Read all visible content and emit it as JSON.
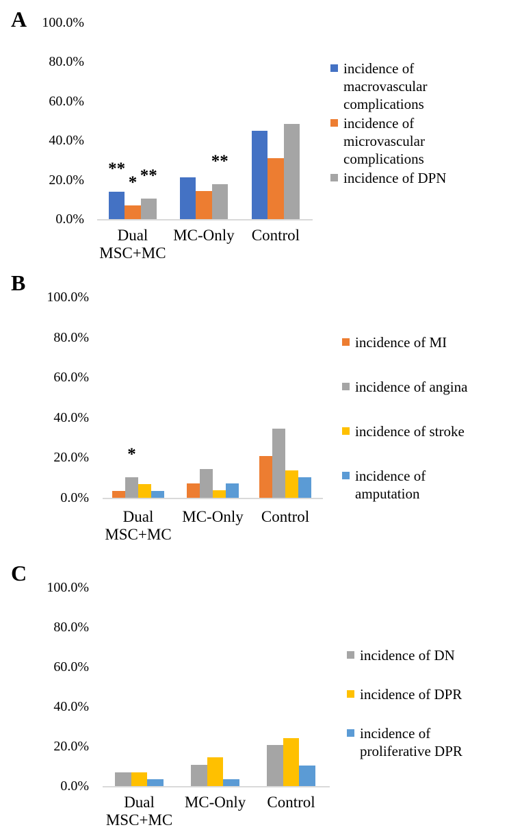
{
  "page": {
    "background": "#ffffff",
    "axis_line_color": "#d9d9d9",
    "text_color": "#000000"
  },
  "colors": {
    "blue": "#4472C4",
    "orange": "#ED7D31",
    "gray": "#A5A5A5",
    "yellow": "#FFC000",
    "light_blue": "#5B9BD5"
  },
  "chart_data": [
    {
      "panel_label": "A",
      "type": "bar",
      "categories": [
        [
          "Dual",
          "MSC+MC"
        ],
        [
          "MC-Only"
        ],
        [
          "Control"
        ]
      ],
      "series": [
        {
          "name": "incidence of macrovascular complications",
          "legend_lines": [
            "incidence of",
            "macrovascular",
            "complications"
          ],
          "color": "#4472C4",
          "values": [
            13.8,
            21.4,
            44.8
          ]
        },
        {
          "name": "incidence of microvascular complications",
          "legend_lines": [
            "incidence of",
            "microvascular",
            "complications"
          ],
          "color": "#ED7D31",
          "values": [
            6.9,
            14.3,
            31.0
          ]
        },
        {
          "name": "incidence of DPN",
          "legend_lines": [
            "incidence of DPN"
          ],
          "color": "#A5A5A5",
          "values": [
            10.3,
            17.9,
            48.3
          ]
        }
      ],
      "ylim": [
        0,
        100
      ],
      "ytick_step": 20,
      "yticks": [
        "0.0%",
        "20.0%",
        "40.0%",
        "60.0%",
        "80.0%",
        "100.0%"
      ],
      "legend_position": "right",
      "grid": false,
      "annotations": [
        {
          "category_index": 0,
          "series_index": 0,
          "text": "**"
        },
        {
          "category_index": 0,
          "series_index": 1,
          "text": "*"
        },
        {
          "category_index": 0,
          "series_index": 2,
          "text": "**"
        },
        {
          "category_index": 1,
          "series_index": 2,
          "text": "**"
        }
      ]
    },
    {
      "panel_label": "B",
      "type": "bar",
      "categories": [
        [
          "Dual",
          "MSC+MC"
        ],
        [
          "MC-Only"
        ],
        [
          "Control"
        ]
      ],
      "series": [
        {
          "name": "incidence of MI",
          "legend_lines": [
            "incidence of MI"
          ],
          "color": "#ED7D31",
          "values": [
            3.4,
            7.1,
            20.7
          ]
        },
        {
          "name": "incidence of angina",
          "legend_lines": [
            "incidence of angina"
          ],
          "color": "#A5A5A5",
          "values": [
            10.3,
            14.3,
            34.5
          ]
        },
        {
          "name": "incidence of stroke",
          "legend_lines": [
            "incidence of stroke"
          ],
          "color": "#FFC000",
          "values": [
            6.9,
            3.6,
            13.8
          ]
        },
        {
          "name": "incidence of amputation",
          "legend_lines": [
            "incidence of",
            "amputation"
          ],
          "color": "#5B9BD5",
          "values": [
            3.4,
            7.1,
            10.3
          ]
        }
      ],
      "ylim": [
        0,
        100
      ],
      "ytick_step": 20,
      "yticks": [
        "0.0%",
        "20.0%",
        "40.0%",
        "60.0%",
        "80.0%",
        "100.0%"
      ],
      "legend_position": "right",
      "grid": false,
      "annotations": [
        {
          "category_index": 0,
          "series_index": 1,
          "text": "*"
        }
      ]
    },
    {
      "panel_label": "C",
      "type": "bar",
      "categories": [
        [
          "Dual",
          "MSC+MC"
        ],
        [
          "MC-Only"
        ],
        [
          "Control"
        ]
      ],
      "series": [
        {
          "name": "incidence of DN",
          "legend_lines": [
            "incidence of DN"
          ],
          "color": "#A5A5A5",
          "values": [
            6.9,
            10.7,
            20.7
          ]
        },
        {
          "name": "incidence of DPR",
          "legend_lines": [
            "incidence of DPR"
          ],
          "color": "#FFC000",
          "values": [
            6.9,
            14.3,
            24.1
          ]
        },
        {
          "name": "incidence of proliferative DPR",
          "legend_lines": [
            "incidence of",
            "proliferative DPR"
          ],
          "color": "#5B9BD5",
          "values": [
            3.4,
            3.6,
            10.3
          ]
        }
      ],
      "ylim": [
        0,
        100
      ],
      "ytick_step": 20,
      "yticks": [
        "0.0%",
        "20.0%",
        "40.0%",
        "60.0%",
        "80.0%",
        "100.0%"
      ],
      "legend_position": "right",
      "grid": false,
      "annotations": []
    }
  ]
}
